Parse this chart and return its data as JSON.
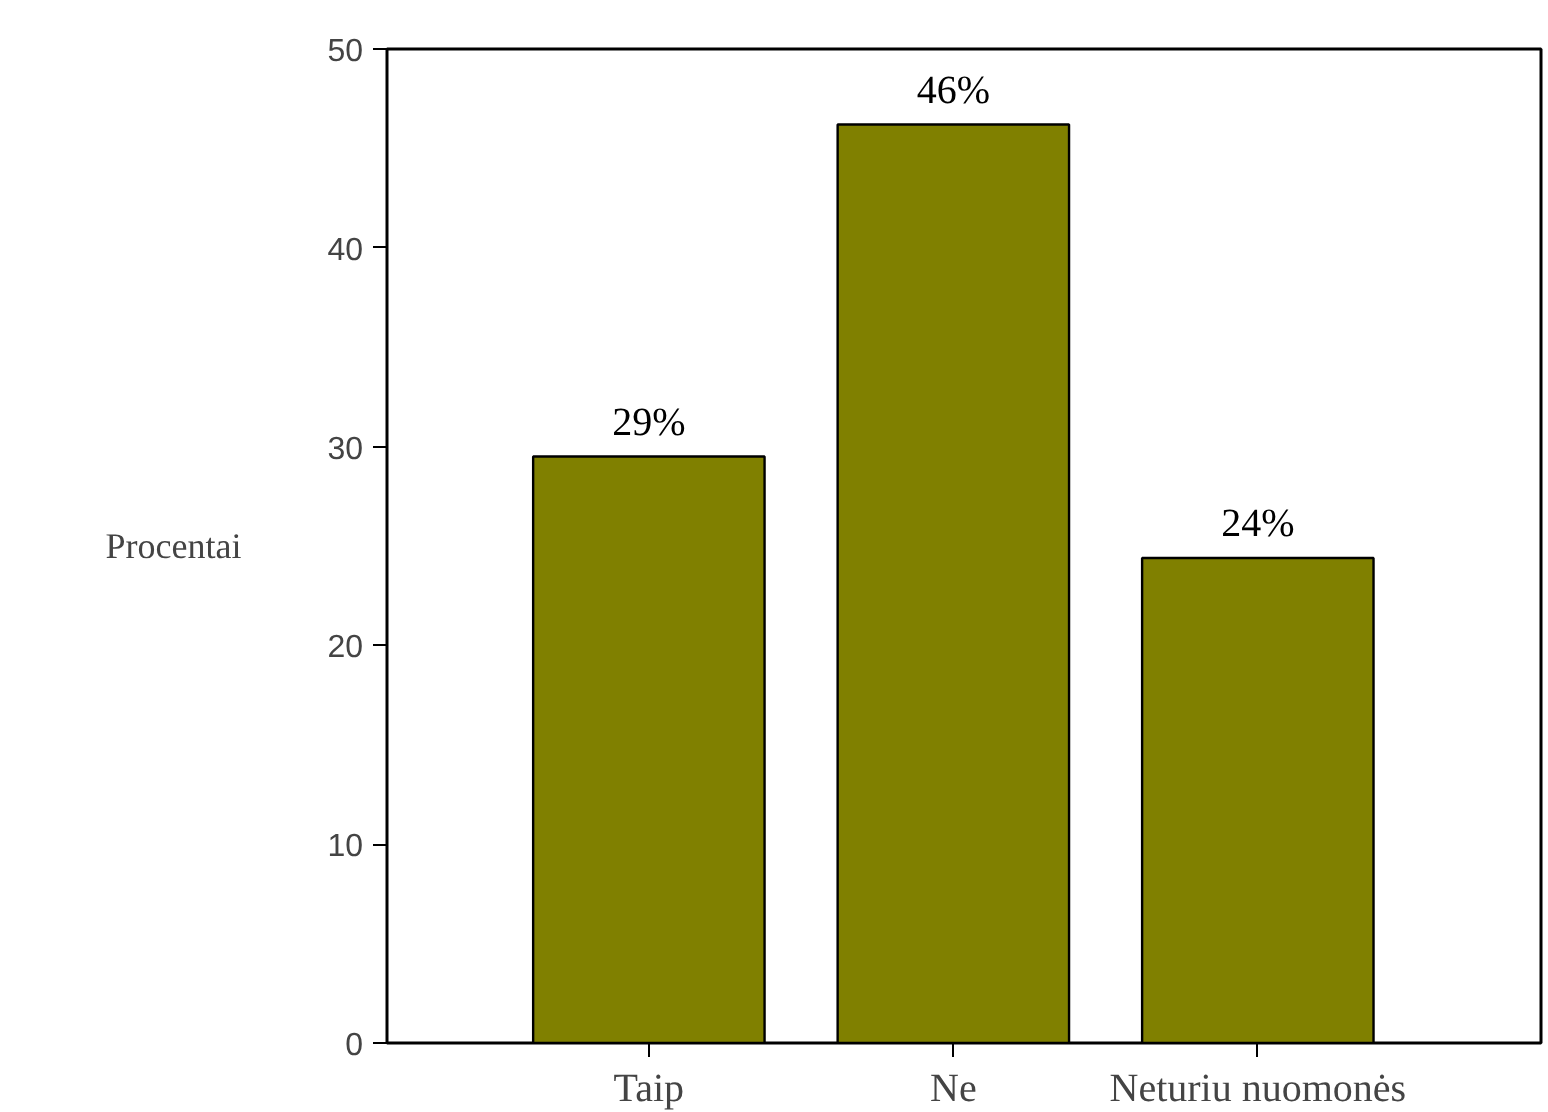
{
  "chart_data": {
    "type": "bar",
    "ylabel": "Procentai",
    "categories": [
      "Taip",
      "Ne",
      "Neturiu nuomonės"
    ],
    "values": [
      29.5,
      46.2,
      24.4
    ],
    "value_labels": [
      "29%",
      "46%",
      "24%"
    ],
    "color": "#808000",
    "ylim": [
      0,
      50
    ],
    "yticks": [
      0,
      10,
      20,
      30,
      40,
      50
    ],
    "grid": false
  }
}
